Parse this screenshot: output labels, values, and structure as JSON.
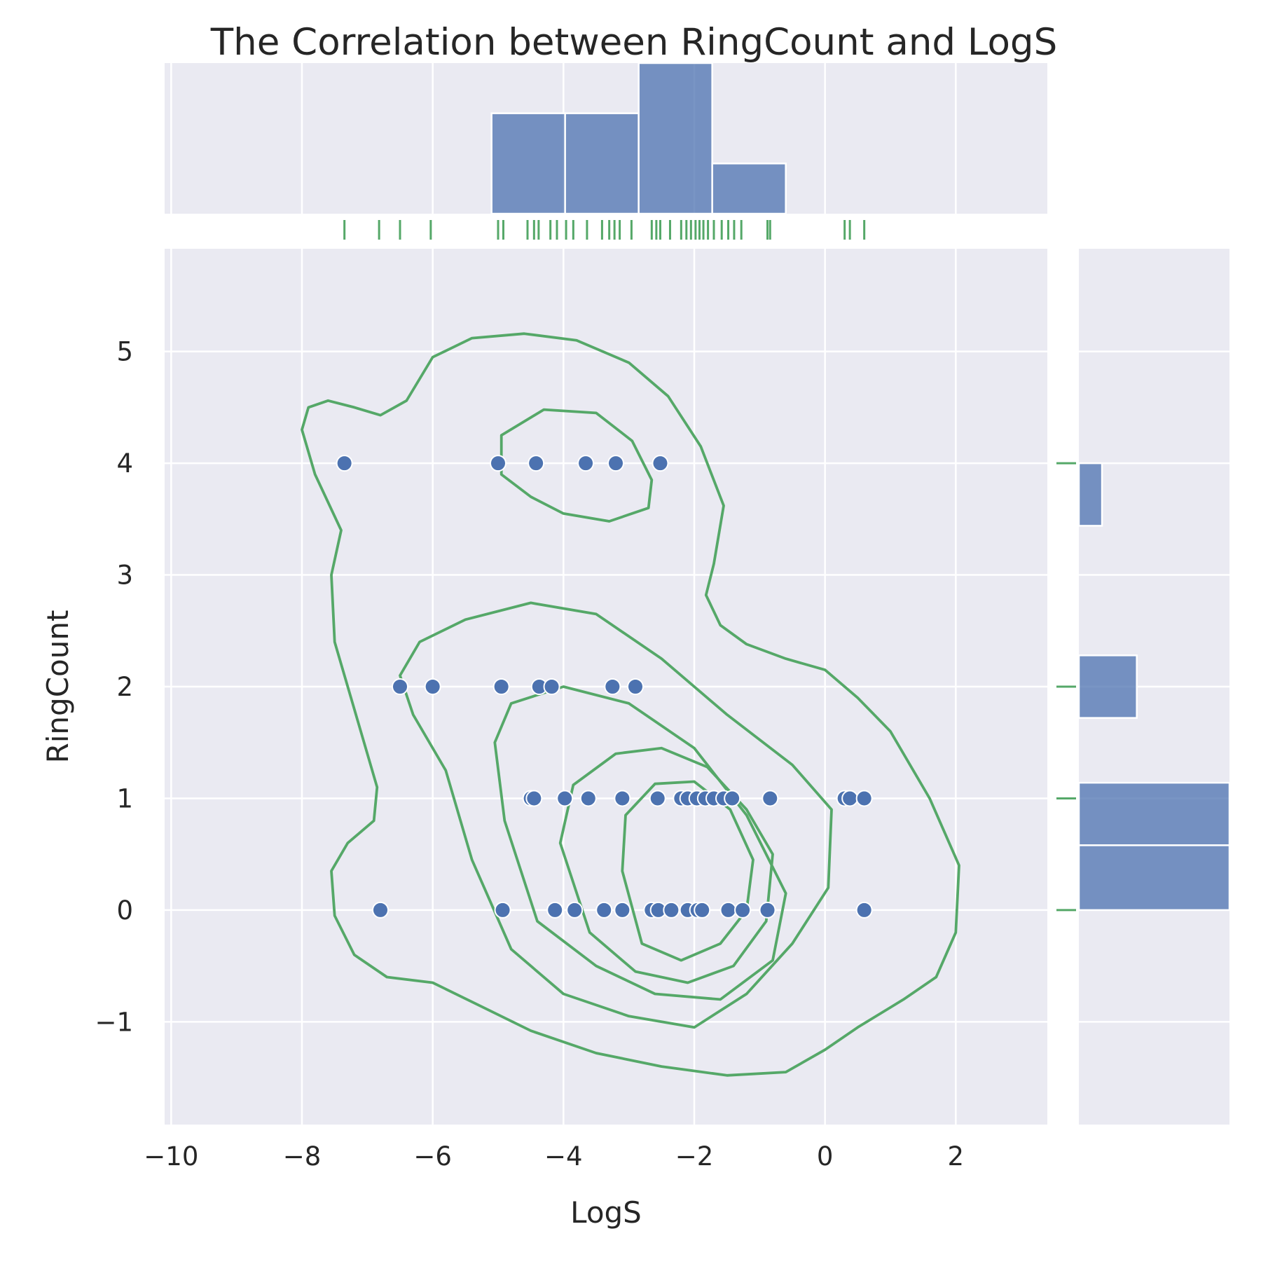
{
  "chart_data": {
    "type": "scatter",
    "title": "The Correlation between RingCount and LogS",
    "xlabel": "LogS",
    "ylabel": "RingCount",
    "xlim": [
      -10.1,
      3.4
    ],
    "ylim": [
      -1.92,
      5.92
    ],
    "x_ticks": [
      -10,
      -8,
      -6,
      -4,
      -2,
      0,
      2
    ],
    "y_ticks": [
      -1,
      0,
      1,
      2,
      3,
      4,
      5
    ],
    "x_tick_labels": [
      "−10",
      "−8",
      "−6",
      "−4",
      "−2",
      "0",
      "2"
    ],
    "y_tick_labels": [
      "−1",
      "0",
      "1",
      "2",
      "3",
      "4",
      "5"
    ],
    "grid": true,
    "colors": {
      "background": "#EAEAF2",
      "grid": "#FFFFFF",
      "points": "#4C72B0",
      "point_edge": "#FFFFFF",
      "kde": "#55A868",
      "rug": "#55A868",
      "hist": "#4C72B0"
    },
    "points": [
      {
        "x": -7.35,
        "y": 4
      },
      {
        "x": -5.0,
        "y": 4
      },
      {
        "x": -4.42,
        "y": 4
      },
      {
        "x": -3.66,
        "y": 4
      },
      {
        "x": -3.2,
        "y": 4
      },
      {
        "x": -2.52,
        "y": 4
      },
      {
        "x": -6.5,
        "y": 2
      },
      {
        "x": -6.0,
        "y": 2
      },
      {
        "x": -4.95,
        "y": 2
      },
      {
        "x": -4.37,
        "y": 2
      },
      {
        "x": -4.18,
        "y": 2
      },
      {
        "x": -3.25,
        "y": 2
      },
      {
        "x": -2.9,
        "y": 2
      },
      {
        "x": -4.5,
        "y": 1
      },
      {
        "x": -4.45,
        "y": 1
      },
      {
        "x": -3.98,
        "y": 1
      },
      {
        "x": -3.62,
        "y": 1
      },
      {
        "x": -3.1,
        "y": 1
      },
      {
        "x": -2.56,
        "y": 1
      },
      {
        "x": -2.2,
        "y": 1
      },
      {
        "x": -2.1,
        "y": 1
      },
      {
        "x": -1.96,
        "y": 1
      },
      {
        "x": -1.83,
        "y": 1
      },
      {
        "x": -1.7,
        "y": 1
      },
      {
        "x": -1.55,
        "y": 1
      },
      {
        "x": -1.42,
        "y": 1
      },
      {
        "x": -0.84,
        "y": 1
      },
      {
        "x": 0.3,
        "y": 1
      },
      {
        "x": 0.38,
        "y": 1
      },
      {
        "x": 0.6,
        "y": 1
      },
      {
        "x": -6.8,
        "y": 0
      },
      {
        "x": -4.93,
        "y": 0
      },
      {
        "x": -4.13,
        "y": 0
      },
      {
        "x": -3.83,
        "y": 0
      },
      {
        "x": -3.38,
        "y": 0
      },
      {
        "x": -3.1,
        "y": 0
      },
      {
        "x": -2.65,
        "y": 0
      },
      {
        "x": -2.55,
        "y": 0
      },
      {
        "x": -2.35,
        "y": 0
      },
      {
        "x": -2.1,
        "y": 0
      },
      {
        "x": -1.95,
        "y": 0
      },
      {
        "x": -1.88,
        "y": 0
      },
      {
        "x": -1.48,
        "y": 0
      },
      {
        "x": -1.26,
        "y": 0
      },
      {
        "x": -0.88,
        "y": 0
      },
      {
        "x": 0.6,
        "y": 0
      }
    ],
    "rug_x": [
      -7.35,
      -6.82,
      -6.5,
      -6.03,
      -5.0,
      -4.92,
      -4.55,
      -4.45,
      -4.38,
      -4.2,
      -4.1,
      -3.96,
      -3.85,
      -3.64,
      -3.41,
      -3.3,
      -3.22,
      -3.14,
      -2.96,
      -2.65,
      -2.58,
      -2.52,
      -2.37,
      -2.2,
      -2.12,
      -2.05,
      -1.98,
      -1.92,
      -1.86,
      -1.79,
      -1.7,
      -1.58,
      -1.48,
      -1.39,
      -1.28,
      -0.88,
      -0.84,
      0.3,
      0.38,
      0.6
    ],
    "rug_y": [
      0,
      1,
      2,
      4
    ],
    "hist_x": {
      "bin_edges": [
        -5.1,
        -3.975,
        -2.85,
        -1.725,
        -0.6
      ],
      "counts": [
        12,
        12,
        18,
        6
      ]
    },
    "hist_y": {
      "bins": [
        {
          "from": 3.44,
          "to": 4.0,
          "count": 2
        },
        {
          "from": 1.72,
          "to": 2.28,
          "count": 5
        },
        {
          "from": 0.58,
          "to": 1.14,
          "count": 45
        },
        {
          "from": 0.0,
          "to": 0.58,
          "count": 45
        }
      ]
    },
    "kde_contours": [
      [
        [
          -7.9,
          4.5
        ],
        [
          -7.6,
          4.56
        ],
        [
          -7.2,
          4.5
        ],
        [
          -6.8,
          4.43
        ],
        [
          -6.4,
          4.56
        ],
        [
          -6.0,
          4.95
        ],
        [
          -5.4,
          5.12
        ],
        [
          -4.6,
          5.16
        ],
        [
          -3.8,
          5.1
        ],
        [
          -3.0,
          4.9
        ],
        [
          -2.4,
          4.6
        ],
        [
          -1.9,
          4.15
        ],
        [
          -1.55,
          3.62
        ],
        [
          -1.7,
          3.1
        ],
        [
          -1.82,
          2.82
        ],
        [
          -1.6,
          2.55
        ],
        [
          -1.2,
          2.38
        ],
        [
          -0.6,
          2.25
        ],
        [
          0.0,
          2.15
        ],
        [
          0.5,
          1.9
        ],
        [
          1.0,
          1.6
        ],
        [
          1.6,
          1.0
        ],
        [
          2.05,
          0.4
        ],
        [
          2.0,
          -0.2
        ],
        [
          1.7,
          -0.6
        ],
        [
          1.2,
          -0.8
        ],
        [
          0.5,
          -1.05
        ],
        [
          0.0,
          -1.25
        ],
        [
          -0.6,
          -1.45
        ],
        [
          -1.5,
          -1.48
        ],
        [
          -2.5,
          -1.4
        ],
        [
          -3.5,
          -1.28
        ],
        [
          -4.5,
          -1.08
        ],
        [
          -5.3,
          -0.85
        ],
        [
          -6.0,
          -0.65
        ],
        [
          -6.7,
          -0.6
        ],
        [
          -7.2,
          -0.4
        ],
        [
          -7.5,
          -0.05
        ],
        [
          -7.55,
          0.35
        ],
        [
          -7.3,
          0.6
        ],
        [
          -6.9,
          0.8
        ],
        [
          -6.85,
          1.1
        ],
        [
          -7.2,
          1.8
        ],
        [
          -7.5,
          2.4
        ],
        [
          -7.55,
          3.0
        ],
        [
          -7.4,
          3.4
        ],
        [
          -7.8,
          3.9
        ],
        [
          -8.0,
          4.3
        ],
        [
          -7.9,
          4.5
        ]
      ],
      [
        [
          -4.95,
          3.9
        ],
        [
          -4.95,
          4.25
        ],
        [
          -4.3,
          4.48
        ],
        [
          -3.5,
          4.45
        ],
        [
          -2.95,
          4.2
        ],
        [
          -2.65,
          3.85
        ],
        [
          -2.7,
          3.6
        ],
        [
          -3.3,
          3.48
        ],
        [
          -4.0,
          3.55
        ],
        [
          -4.5,
          3.7
        ],
        [
          -4.95,
          3.9
        ]
      ],
      [
        [
          -6.5,
          2.1
        ],
        [
          -6.2,
          2.4
        ],
        [
          -5.5,
          2.6
        ],
        [
          -4.5,
          2.75
        ],
        [
          -3.5,
          2.65
        ],
        [
          -2.5,
          2.25
        ],
        [
          -1.5,
          1.75
        ],
        [
          -0.5,
          1.3
        ],
        [
          0.1,
          0.9
        ],
        [
          0.05,
          0.2
        ],
        [
          -0.5,
          -0.3
        ],
        [
          -1.2,
          -0.75
        ],
        [
          -2.0,
          -1.05
        ],
        [
          -3.0,
          -0.95
        ],
        [
          -4.0,
          -0.75
        ],
        [
          -4.8,
          -0.35
        ],
        [
          -5.4,
          0.45
        ],
        [
          -5.8,
          1.25
        ],
        [
          -6.3,
          1.75
        ],
        [
          -6.5,
          2.1
        ]
      ],
      [
        [
          -5.05,
          1.5
        ],
        [
          -4.8,
          1.85
        ],
        [
          -4.0,
          2.0
        ],
        [
          -3.0,
          1.85
        ],
        [
          -2.0,
          1.45
        ],
        [
          -1.2,
          0.85
        ],
        [
          -0.6,
          0.15
        ],
        [
          -0.8,
          -0.45
        ],
        [
          -1.6,
          -0.8
        ],
        [
          -2.6,
          -0.75
        ],
        [
          -3.5,
          -0.5
        ],
        [
          -4.4,
          -0.1
        ],
        [
          -4.9,
          0.8
        ],
        [
          -5.05,
          1.5
        ]
      ],
      [
        [
          -4.05,
          0.6
        ],
        [
          -3.85,
          1.12
        ],
        [
          -3.2,
          1.4
        ],
        [
          -2.5,
          1.45
        ],
        [
          -1.8,
          1.28
        ],
        [
          -1.2,
          0.9
        ],
        [
          -0.8,
          0.5
        ],
        [
          -0.9,
          -0.1
        ],
        [
          -1.4,
          -0.5
        ],
        [
          -2.1,
          -0.65
        ],
        [
          -2.9,
          -0.55
        ],
        [
          -3.6,
          -0.2
        ],
        [
          -4.05,
          0.6
        ]
      ],
      [
        [
          -3.1,
          0.35
        ],
        [
          -3.05,
          0.85
        ],
        [
          -2.6,
          1.13
        ],
        [
          -2.0,
          1.15
        ],
        [
          -1.45,
          0.9
        ],
        [
          -1.1,
          0.45
        ],
        [
          -1.2,
          0.0
        ],
        [
          -1.6,
          -0.3
        ],
        [
          -2.2,
          -0.45
        ],
        [
          -2.8,
          -0.3
        ],
        [
          -3.1,
          0.35
        ]
      ]
    ]
  }
}
